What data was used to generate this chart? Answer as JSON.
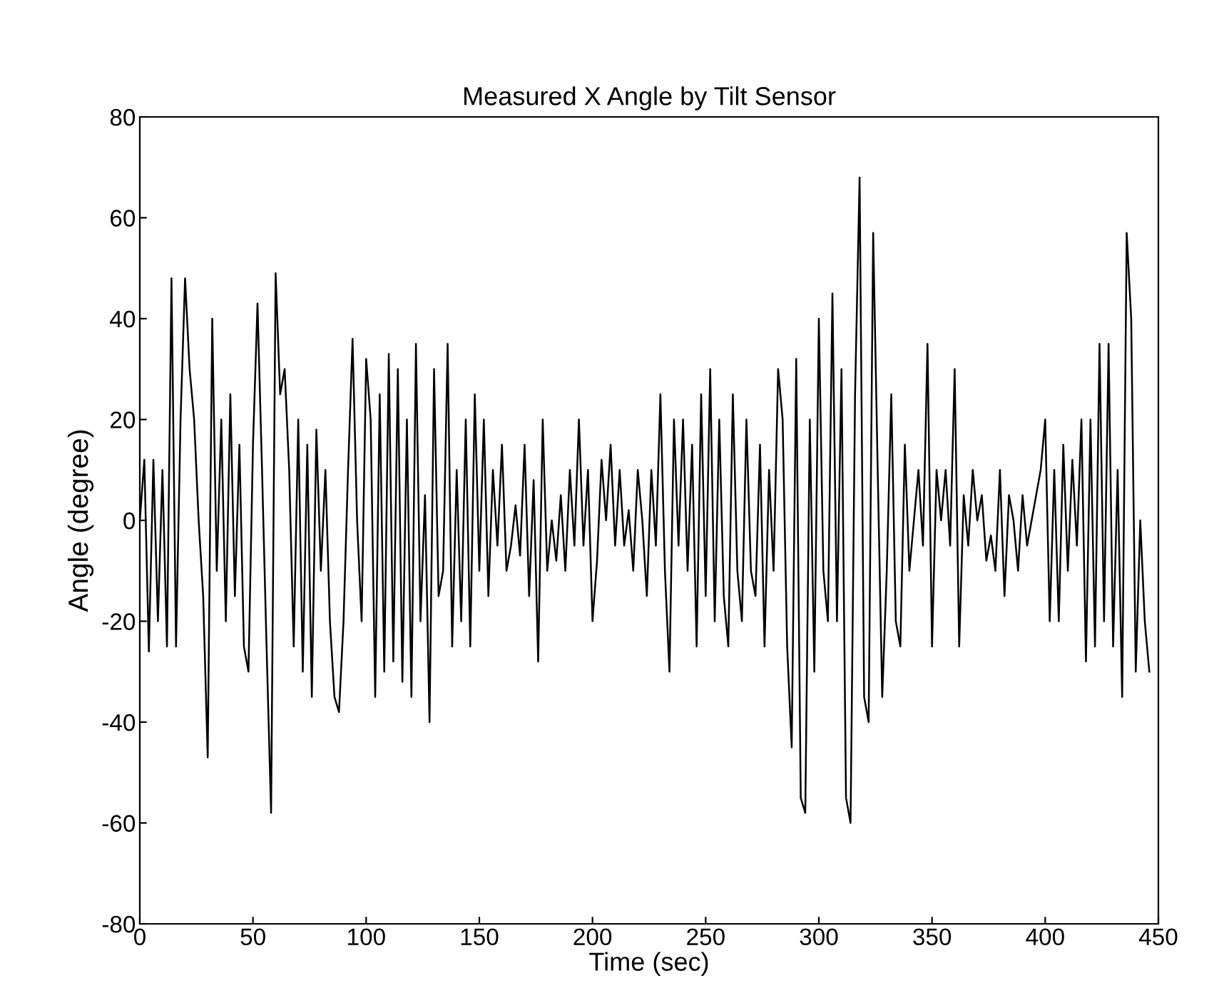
{
  "chart_data": {
    "type": "line",
    "title": "Measured X Angle by Tilt Sensor",
    "xlabel": "Time (sec)",
    "ylabel": "Angle (degree)",
    "x": [
      0,
      2,
      4,
      6,
      8,
      10,
      12,
      14,
      16,
      18,
      20,
      22,
      24,
      26,
      28,
      30,
      32,
      34,
      36,
      38,
      40,
      42,
      44,
      46,
      48,
      50,
      52,
      54,
      56,
      58,
      60,
      62,
      64,
      66,
      68,
      70,
      72,
      74,
      76,
      78,
      80,
      82,
      84,
      86,
      88,
      90,
      92,
      94,
      96,
      98,
      100,
      102,
      104,
      106,
      108,
      110,
      112,
      114,
      116,
      118,
      120,
      122,
      124,
      126,
      128,
      130,
      132,
      134,
      136,
      138,
      140,
      142,
      144,
      146,
      148,
      150,
      152,
      154,
      156,
      158,
      160,
      162,
      164,
      166,
      168,
      170,
      172,
      174,
      176,
      178,
      180,
      182,
      184,
      186,
      188,
      190,
      192,
      194,
      196,
      198,
      200,
      202,
      204,
      206,
      208,
      210,
      212,
      214,
      216,
      218,
      220,
      222,
      224,
      226,
      228,
      230,
      232,
      234,
      236,
      238,
      240,
      242,
      244,
      246,
      248,
      250,
      252,
      254,
      256,
      258,
      260,
      262,
      264,
      266,
      268,
      270,
      272,
      274,
      276,
      278,
      280,
      282,
      284,
      286,
      288,
      290,
      292,
      294,
      296,
      298,
      300,
      302,
      304,
      306,
      308,
      310,
      312,
      314,
      316,
      318,
      320,
      322,
      324,
      326,
      328,
      330,
      332,
      334,
      336,
      338,
      340,
      342,
      344,
      346,
      348,
      350,
      352,
      354,
      356,
      358,
      360,
      362,
      364,
      366,
      368,
      370,
      372,
      374,
      376,
      378,
      380,
      382,
      384,
      386,
      388,
      390,
      392,
      394,
      396,
      398,
      400,
      402,
      404,
      406,
      408,
      410,
      412,
      414,
      416,
      418,
      420,
      422,
      424,
      426,
      428,
      430,
      432,
      434,
      436,
      438,
      440,
      442,
      444,
      446
    ],
    "series": [
      {
        "color": "#000000",
        "values": [
          0,
          12,
          -26,
          12,
          -20,
          10,
          -25,
          48,
          -25,
          20,
          48,
          30,
          20,
          0,
          -15,
          -47,
          40,
          -10,
          20,
          -20,
          25,
          -15,
          15,
          -25,
          -30,
          15,
          43,
          10,
          -25,
          -58,
          49,
          25,
          30,
          10,
          -25,
          20,
          -30,
          15,
          -35,
          18,
          -10,
          10,
          -20,
          -35,
          -38,
          -20,
          10,
          36,
          0,
          -20,
          32,
          20,
          -35,
          25,
          -30,
          33,
          -28,
          30,
          -32,
          20,
          -35,
          35,
          -20,
          5,
          -40,
          30,
          -15,
          -10,
          35,
          -25,
          10,
          -20,
          20,
          -25,
          25,
          -10,
          20,
          -15,
          10,
          -5,
          15,
          -10,
          -5,
          3,
          -7,
          15,
          -15,
          8,
          -28,
          20,
          -10,
          0,
          -8,
          5,
          -10,
          10,
          -5,
          20,
          -5,
          10,
          -20,
          -8,
          12,
          0,
          15,
          -5,
          10,
          -5,
          2,
          -10,
          10,
          0,
          -15,
          10,
          -5,
          25,
          -10,
          -30,
          20,
          -5,
          20,
          -10,
          15,
          -25,
          25,
          -15,
          30,
          -20,
          20,
          -15,
          -25,
          25,
          -10,
          -20,
          20,
          -10,
          -15,
          15,
          -25,
          10,
          -10,
          30,
          20,
          -25,
          -45,
          32,
          -55,
          -58,
          20,
          -30,
          40,
          -10,
          -20,
          45,
          -20,
          30,
          -55,
          -60,
          25,
          68,
          -35,
          -40,
          57,
          10,
          -35,
          -10,
          25,
          -20,
          -25,
          15,
          -10,
          0,
          10,
          -5,
          35,
          -25,
          10,
          0,
          10,
          -5,
          30,
          -25,
          5,
          -5,
          10,
          0,
          5,
          -8,
          -3,
          -10,
          10,
          -15,
          5,
          0,
          -10,
          5,
          -5,
          0,
          5,
          10,
          20,
          -20,
          10,
          -20,
          15,
          -10,
          12,
          -5,
          20,
          -28,
          20,
          -25,
          35,
          -20,
          35,
          -25,
          10,
          -35,
          57,
          40,
          -30,
          0,
          -20,
          -30
        ]
      }
    ],
    "xlim": [
      0,
      450
    ],
    "ylim": [
      -80,
      80
    ],
    "xticks": [
      0,
      50,
      100,
      150,
      200,
      250,
      300,
      350,
      400,
      450
    ],
    "yticks": [
      -80,
      -60,
      -40,
      -20,
      0,
      20,
      40,
      60,
      80
    ],
    "grid": false,
    "legend": false,
    "marker": "none",
    "line_style": "solid"
  }
}
